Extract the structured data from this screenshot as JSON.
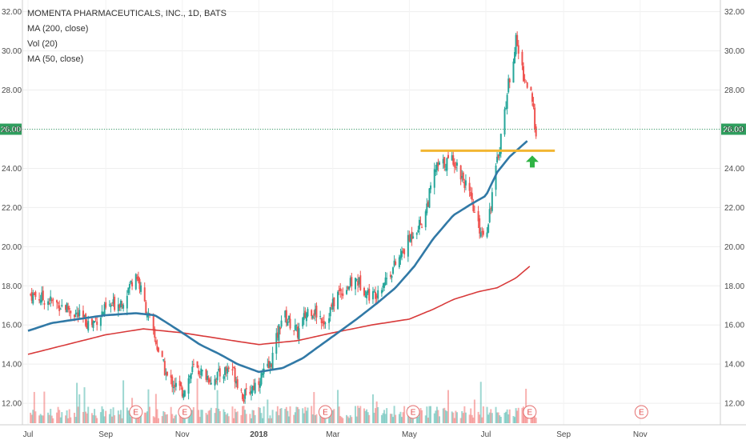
{
  "chart_data": {
    "type": "candlestick",
    "title": "MOMENTA PHARMACEUTICALS, INC., 1D, BATS",
    "indicators": [
      "MA (200, close)",
      "Vol (20)",
      "MA (50, close)"
    ],
    "y_axis": {
      "ticks": [
        "12.00",
        "14.00",
        "16.00",
        "18.00",
        "20.00",
        "22.00",
        "24.00",
        "26.00",
        "28.00",
        "30.00",
        "32.00"
      ],
      "ylim": [
        10.9,
        32.6
      ],
      "side": "both"
    },
    "x_axis": {
      "ticks": [
        "Jul",
        "Sep",
        "Nov",
        "2018",
        "Mar",
        "May",
        "Jul",
        "Sep",
        "Nov"
      ],
      "bold_ticks": [
        "2018"
      ]
    },
    "current_price_label": "26.00",
    "current_price": 26.0,
    "resistance_level": 24.9,
    "earnings_marker_label": "E",
    "earnings_markers": [
      "2017-09-25",
      "2017-11-03",
      "2018-02-23",
      "2018-05-04",
      "2018-08-05",
      "2018-11-02"
    ],
    "colors": {
      "up": "#26a69a",
      "down": "#ef5350",
      "ma50": "#3179a6",
      "ma200": "#d83a3a",
      "resistance_line": "#f2b632",
      "arrow": "#2fb344",
      "price_line": "#3aa66e"
    },
    "ma50_anchors": [
      [
        "2017-07-01",
        15.7
      ],
      [
        "2017-07-20",
        16.1
      ],
      [
        "2017-08-10",
        16.3
      ],
      [
        "2017-09-01",
        16.5
      ],
      [
        "2017-09-25",
        16.6
      ],
      [
        "2017-10-10",
        16.5
      ],
      [
        "2017-10-20",
        16.1
      ],
      [
        "2017-11-01",
        15.6
      ],
      [
        "2017-11-15",
        15.0
      ],
      [
        "2017-12-01",
        14.5
      ],
      [
        "2017-12-15",
        14.0
      ],
      [
        "2018-01-01",
        13.6
      ],
      [
        "2018-01-20",
        13.8
      ],
      [
        "2018-02-05",
        14.3
      ],
      [
        "2018-02-20",
        15.0
      ],
      [
        "2018-03-05",
        15.6
      ],
      [
        "2018-03-20",
        16.3
      ],
      [
        "2018-04-05",
        17.1
      ],
      [
        "2018-04-20",
        17.9
      ],
      [
        "2018-05-05",
        19.0
      ],
      [
        "2018-05-20",
        20.4
      ],
      [
        "2018-06-05",
        21.6
      ],
      [
        "2018-06-20",
        22.2
      ],
      [
        "2018-07-01",
        22.6
      ],
      [
        "2018-07-10",
        23.8
      ],
      [
        "2018-07-20",
        24.6
      ],
      [
        "2018-08-03",
        25.4
      ]
    ],
    "ma200_anchors": [
      [
        "2017-07-01",
        14.5
      ],
      [
        "2017-08-01",
        15.0
      ],
      [
        "2017-09-01",
        15.5
      ],
      [
        "2017-10-01",
        15.8
      ],
      [
        "2017-11-01",
        15.6
      ],
      [
        "2017-12-01",
        15.3
      ],
      [
        "2018-01-01",
        15.0
      ],
      [
        "2018-02-01",
        15.2
      ],
      [
        "2018-03-01",
        15.6
      ],
      [
        "2018-04-01",
        16.0
      ],
      [
        "2018-05-01",
        16.3
      ],
      [
        "2018-05-20",
        16.8
      ],
      [
        "2018-06-05",
        17.3
      ],
      [
        "2018-06-25",
        17.7
      ],
      [
        "2018-07-10",
        17.9
      ],
      [
        "2018-07-25",
        18.4
      ],
      [
        "2018-08-05",
        19.0
      ]
    ],
    "close_anchors": [
      [
        "2017-07-01",
        17.6
      ],
      [
        "2017-07-15",
        17.3
      ],
      [
        "2017-08-01",
        16.9
      ],
      [
        "2017-08-20",
        16.0
      ],
      [
        "2017-09-01",
        16.8
      ],
      [
        "2017-09-15",
        17.3
      ],
      [
        "2017-09-25",
        18.7
      ],
      [
        "2017-10-01",
        17.3
      ],
      [
        "2017-10-10",
        15.3
      ],
      [
        "2017-10-20",
        13.3
      ],
      [
        "2017-11-01",
        12.6
      ],
      [
        "2017-11-10",
        13.8
      ],
      [
        "2017-11-25",
        13.2
      ],
      [
        "2017-12-10",
        13.9
      ],
      [
        "2017-12-20",
        12.3
      ],
      [
        "2018-01-01",
        13.2
      ],
      [
        "2018-01-10",
        13.9
      ],
      [
        "2018-01-20",
        16.6
      ],
      [
        "2018-02-01",
        15.6
      ],
      [
        "2018-02-10",
        16.9
      ],
      [
        "2018-02-23",
        16.2
      ],
      [
        "2018-03-05",
        17.6
      ],
      [
        "2018-03-20",
        18.3
      ],
      [
        "2018-04-01",
        17.4
      ],
      [
        "2018-04-15",
        18.6
      ],
      [
        "2018-04-25",
        19.6
      ],
      [
        "2018-05-05",
        20.9
      ],
      [
        "2018-05-12",
        21.3
      ],
      [
        "2018-05-22",
        24.0
      ],
      [
        "2018-06-05",
        24.5
      ],
      [
        "2018-06-15",
        23.2
      ],
      [
        "2018-06-25",
        21.0
      ],
      [
        "2018-07-01",
        20.6
      ],
      [
        "2018-07-10",
        24.3
      ],
      [
        "2018-07-20",
        28.7
      ],
      [
        "2018-07-25",
        30.5
      ],
      [
        "2018-08-01",
        28.5
      ],
      [
        "2018-08-05",
        28.1
      ],
      [
        "2018-08-10",
        25.9
      ]
    ]
  }
}
